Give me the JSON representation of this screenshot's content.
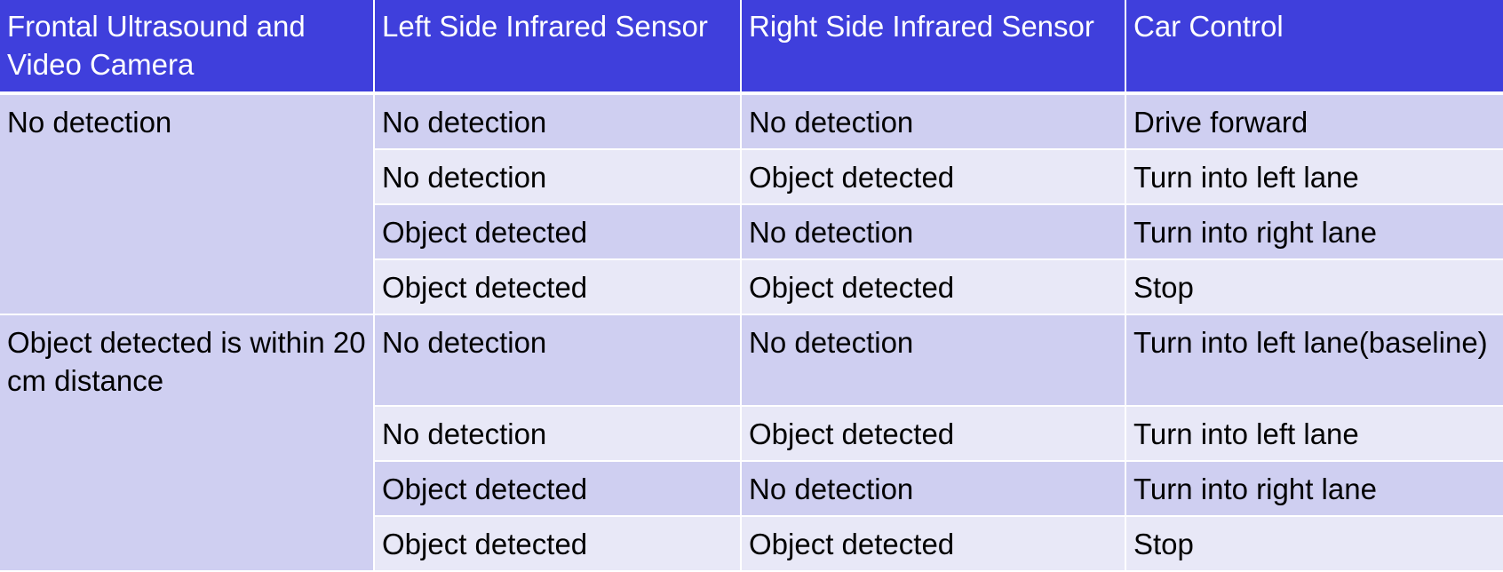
{
  "table": {
    "headers": [
      "Frontal Ultrasound and Video Camera",
      "Left Side Infrared Sensor",
      "Right Side Infrared Sensor",
      "Car Control"
    ],
    "groups": [
      {
        "frontal": "No detection",
        "rows": [
          [
            "No detection",
            "No detection",
            "Drive forward"
          ],
          [
            "No detection",
            "Object detected",
            "Turn into left lane"
          ],
          [
            "Object detected",
            "No detection",
            "Turn into right lane"
          ],
          [
            "Object detected",
            "Object detected",
            "Stop"
          ]
        ]
      },
      {
        "frontal": "Object detected is within 20 cm distance",
        "rows": [
          [
            "No detection",
            "No detection",
            "Turn into left lane(baseline)"
          ],
          [
            "No detection",
            "Object detected",
            "Turn into left lane"
          ],
          [
            "Object detected",
            "No detection",
            "Turn into right lane"
          ],
          [
            "Object detected",
            "Object detected",
            "Stop"
          ]
        ]
      }
    ]
  }
}
